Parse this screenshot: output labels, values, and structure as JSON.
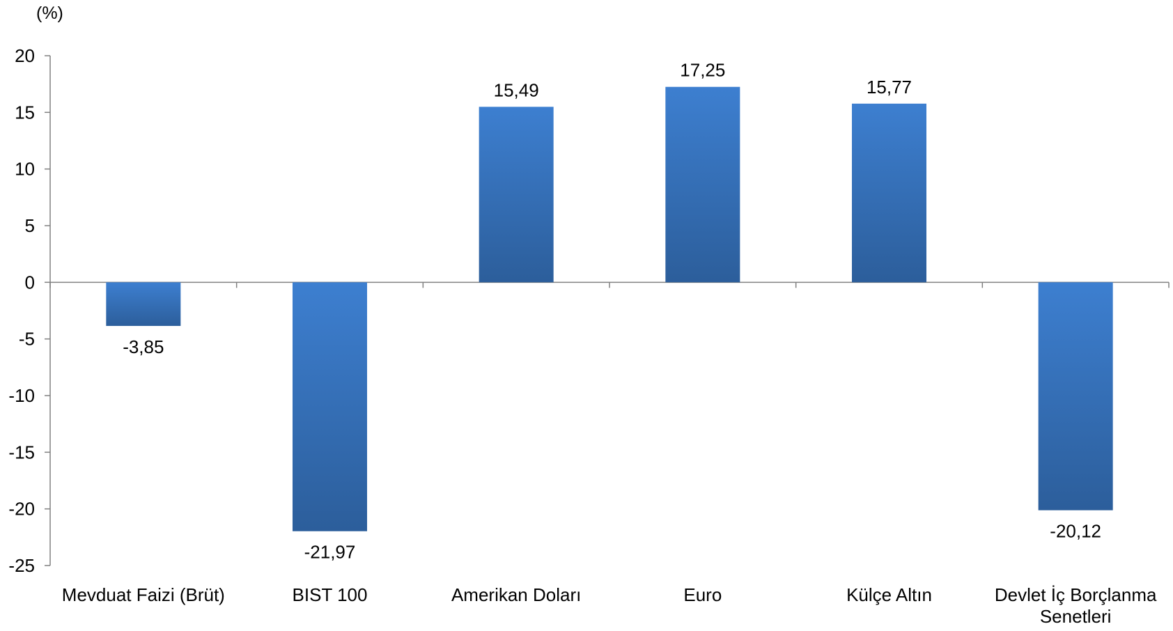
{
  "chart_data": {
    "type": "bar",
    "unit_label": "(%)",
    "categories": [
      [
        "Mevduat Faizi (Brüt)"
      ],
      [
        "BIST 100"
      ],
      [
        "Amerikan Doları"
      ],
      [
        "Euro"
      ],
      [
        "Külçe Altın"
      ],
      [
        "Devlet İç Borçlanma",
        "Senetleri"
      ]
    ],
    "values": [
      -3.85,
      -21.97,
      15.49,
      17.25,
      15.77,
      -20.12
    ],
    "value_labels": [
      "-3,85",
      "-21,97",
      "15,49",
      "17,25",
      "15,77",
      "-20,12"
    ],
    "ylim": [
      -25,
      20
    ],
    "yticks": [
      20,
      15,
      10,
      5,
      0,
      -5,
      -10,
      -15,
      -20,
      -25
    ],
    "grid": false,
    "legend": "none",
    "colors": {
      "bar_top": "#3d7fd0",
      "bar_bottom": "#2c5e9b",
      "axis": "#808080"
    }
  }
}
